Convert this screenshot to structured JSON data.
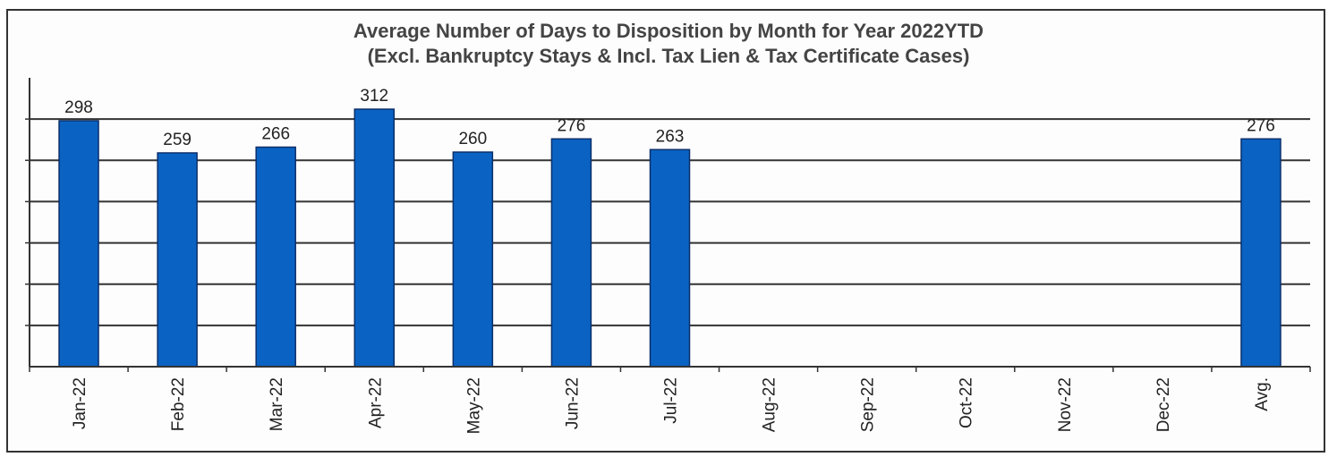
{
  "chart_data": {
    "type": "bar",
    "title": "Average Number of Days to Disposition  by Month for Year 2022YTD",
    "subtitle": "(Excl. Bankruptcy Stays & Incl. Tax Lien & Tax Certificate Cases)",
    "categories": [
      "Jan-22",
      "Feb-22",
      "Mar-22",
      "Apr-22",
      "May-22",
      "Jun-22",
      "Jul-22",
      "Aug-22",
      "Sep-22",
      "Oct-22",
      "Nov-22",
      "Dec-22",
      "Avg."
    ],
    "values": [
      298,
      259,
      266,
      312,
      260,
      276,
      263,
      null,
      null,
      null,
      null,
      null,
      276
    ],
    "data_labels": [
      "298",
      "259",
      "266",
      "312",
      "260",
      "276",
      "263",
      "",
      "",
      "",
      "",
      "",
      "276"
    ],
    "ylim": [
      0,
      350
    ],
    "grid": true,
    "xlabel": "",
    "ylabel": "",
    "colors": {
      "bar": "#0a63c3",
      "bar_edge": "#0b2f6b",
      "grid": "#333333"
    }
  }
}
